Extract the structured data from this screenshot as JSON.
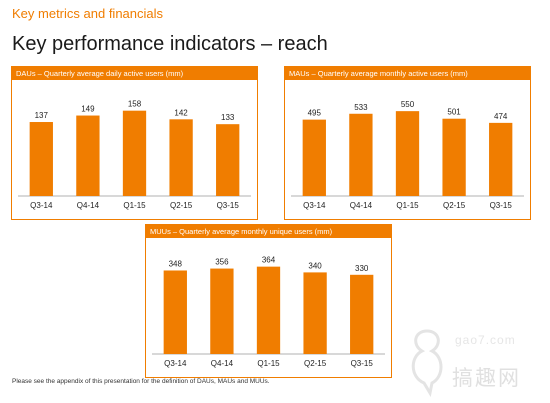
{
  "header": {
    "section": "Key metrics and financials",
    "title": "Key performance indicators – reach"
  },
  "chart_data": [
    {
      "type": "bar",
      "title": "DAUs – Quarterly average daily active users (mm)",
      "categories": [
        "Q3-14",
        "Q4-14",
        "Q1-15",
        "Q2-15",
        "Q3-15"
      ],
      "values": [
        137,
        149,
        158,
        142,
        133
      ],
      "ylim": [
        0,
        200
      ],
      "data_labels": true,
      "grid": false,
      "color": "#f07d00"
    },
    {
      "type": "bar",
      "title": "MAUs – Quarterly average monthly active users (mm)",
      "categories": [
        "Q3-14",
        "Q4-14",
        "Q1-15",
        "Q2-15",
        "Q3-15"
      ],
      "values": [
        495,
        533,
        550,
        501,
        474
      ],
      "ylim": [
        0,
        700
      ],
      "data_labels": true,
      "grid": false,
      "color": "#f07d00"
    },
    {
      "type": "bar",
      "title": "MUUs – Quarterly average monthly unique users (mm)",
      "categories": [
        "Q3-14",
        "Q4-14",
        "Q1-15",
        "Q2-15",
        "Q3-15"
      ],
      "values": [
        348,
        356,
        364,
        340,
        330
      ],
      "ylim": [
        0,
        450
      ],
      "data_labels": true,
      "grid": false,
      "color": "#f07d00"
    }
  ],
  "footnote": "Please see the appendix of this presentation for the definition of DAUs, MAUs and MUUs.",
  "watermark": {
    "site": "gao7.com",
    "name": "搞趣网"
  }
}
